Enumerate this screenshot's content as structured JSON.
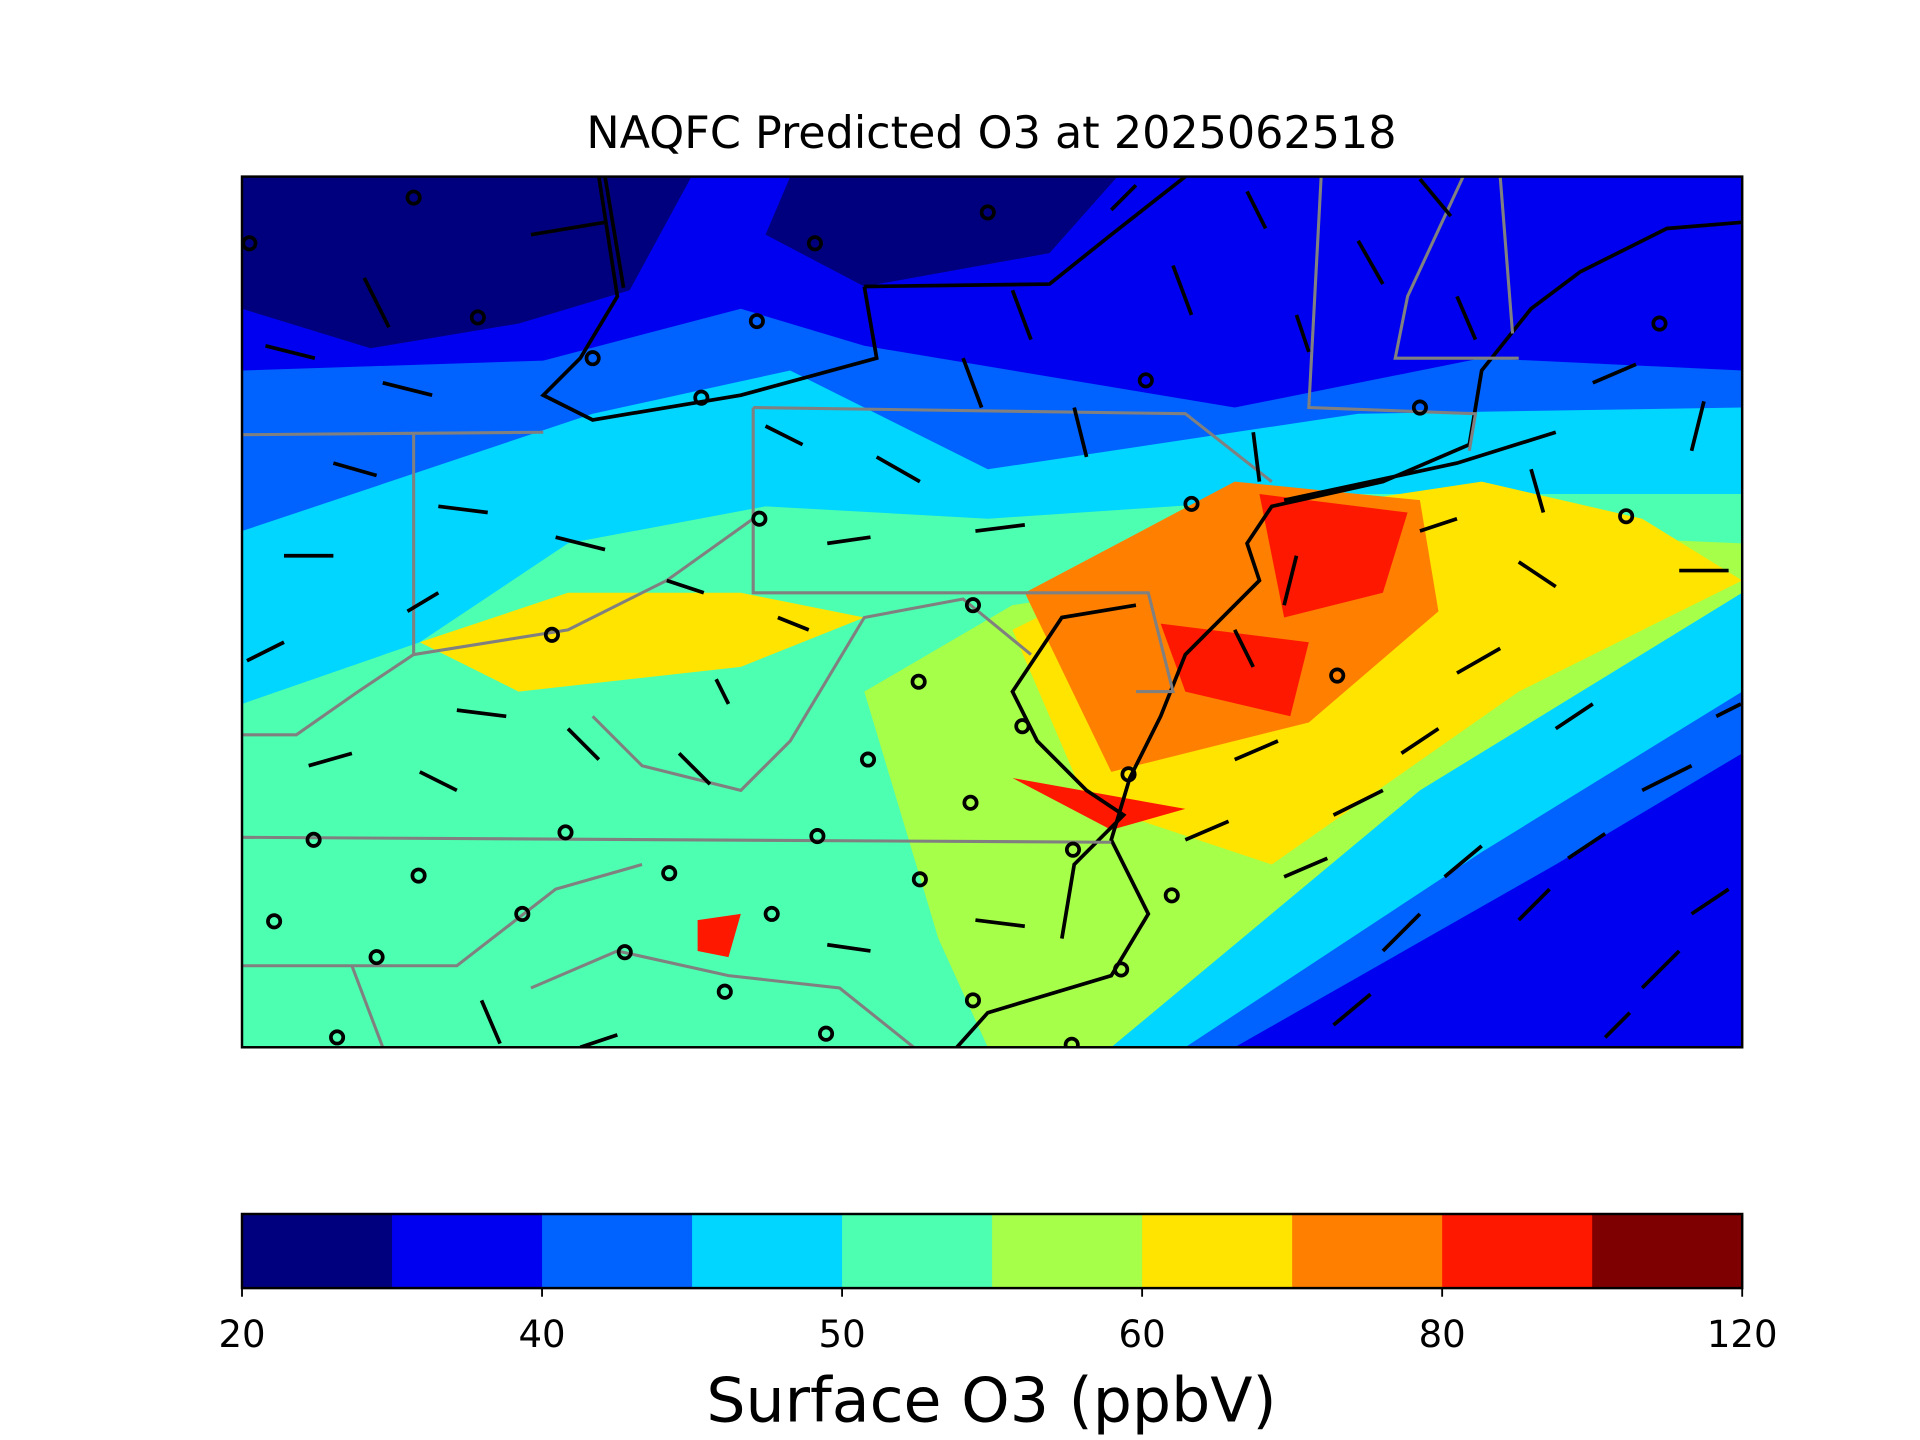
{
  "chart_data": {
    "type": "map",
    "title": "NAQFC Predicted O3 at 2025062518",
    "colorbar": {
      "label": "Surface O3 (ppbV)",
      "colors": [
        "#00007f",
        "#0000f0",
        "#0062ff",
        "#00d6ff",
        "#4dffb0",
        "#a6ff48",
        "#ffe400",
        "#ff8000",
        "#ff1800",
        "#7f0000"
      ],
      "ticks": [
        20,
        40,
        50,
        60,
        80,
        120
      ]
    }
  }
}
